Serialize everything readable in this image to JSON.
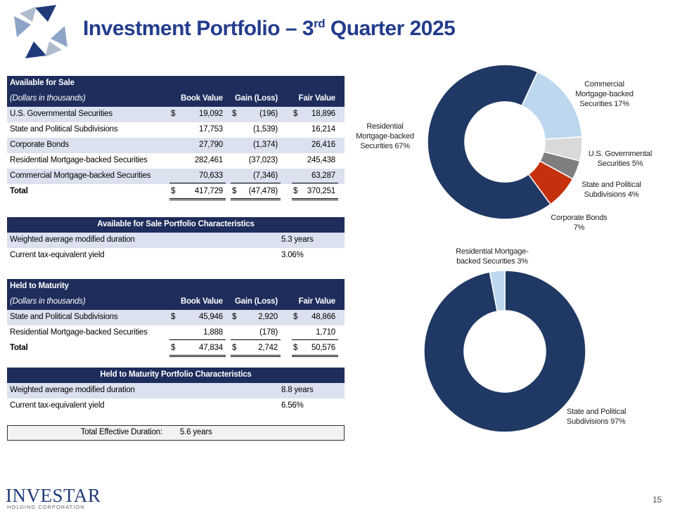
{
  "header": {
    "title_main": "Investment Portfolio – 3",
    "title_sup": "rd",
    "title_end": " Quarter 2025"
  },
  "afs_table": {
    "title": "Available for Sale",
    "columns": [
      "(Dollars in thousands)",
      "Book Value",
      "Gain (Loss)",
      "Fair Value"
    ],
    "currency_symbol": "$",
    "rows": [
      {
        "cells": [
          "U.S. Governmental Securities",
          "19,092",
          "(196)",
          "18,896"
        ],
        "currency": true
      },
      {
        "cells": [
          "State and Political Subdivisions",
          "17,753",
          "(1,539)",
          "16,214"
        ],
        "currency": false
      },
      {
        "cells": [
          "Corporate Bonds",
          "27,790",
          "(1,374)",
          "26,416"
        ],
        "currency": false
      },
      {
        "cells": [
          "Residential Mortgage-backed Securities",
          "282,461",
          "(37,023)",
          "245,438"
        ],
        "currency": false
      },
      {
        "cells": [
          "Commercial Mortgage-backed Securities",
          "70,633",
          "(7,346)",
          "63,287"
        ],
        "currency": false
      }
    ],
    "total": {
      "cells": [
        "Total",
        "417,729",
        "(47,478)",
        "370,251"
      ],
      "currency": true
    }
  },
  "afs_characteristics": {
    "title": "Available for Sale Portfolio Characteristics",
    "rows": [
      [
        "Weighted average modified duration",
        "5.3 years"
      ],
      [
        "Current tax-equivalent yield",
        "3.06%"
      ]
    ]
  },
  "htm_table": {
    "title": "Held to Maturity",
    "columns": [
      "(Dollars in thousands)",
      "Book Value",
      "Gain (Loss)",
      "Fair Value"
    ],
    "currency_symbol": "$",
    "rows": [
      {
        "cells": [
          "State and Political Subdivisions",
          "45,946",
          "2,920",
          "48,866"
        ],
        "currency": true
      },
      {
        "cells": [
          "Residential Mortgage-backed Securities",
          "1,888",
          "(178)",
          "1,710"
        ],
        "currency": false
      }
    ],
    "total": {
      "cells": [
        "Total",
        "47,834",
        "2,742",
        "50,576"
      ],
      "currency": true
    }
  },
  "htm_characteristics": {
    "title": "Held to Maturity Portfolio Characteristics",
    "rows": [
      [
        "Weighted average modified duration",
        "8.8 years"
      ],
      [
        "Current tax-equivalent yield",
        "6.56%"
      ]
    ]
  },
  "total_duration": {
    "label": "Total Effective Duration:",
    "value": "5.6 years"
  },
  "afs_chart": {
    "type": "donut",
    "slices": [
      {
        "name": "Commercial Mortgage-backed Securities",
        "value": 17,
        "value_label": "17%",
        "color": "#bdd7ee"
      },
      {
        "name": "U.S. Governmental Securities",
        "value": 5,
        "value_label": "5%",
        "color": "#d9d9d9"
      },
      {
        "name": "State and Political Subdivisions",
        "value": 4,
        "value_label": "4%",
        "color": "#7f7f7f"
      },
      {
        "name": "Corporate Bonds",
        "value": 7,
        "value_label": "7%",
        "color": "#c5310c"
      },
      {
        "name": "Residential Mortgage-backed Securities",
        "value": 67,
        "value_label": "67%",
        "color": "#203864"
      }
    ]
  },
  "htm_chart": {
    "type": "donut",
    "slices": [
      {
        "name": "State and Political Subdivisions",
        "value": 97,
        "value_label": "97%",
        "color": "#203864"
      },
      {
        "name": "Residential Mortgage-backed Securities",
        "value": 3,
        "value_label": "3%",
        "color": "#bdd7ee"
      }
    ]
  },
  "footer": {
    "logo_name": "INVESTAR",
    "logo_sub": "HOLDING CORPORATION",
    "page_number": "15"
  }
}
